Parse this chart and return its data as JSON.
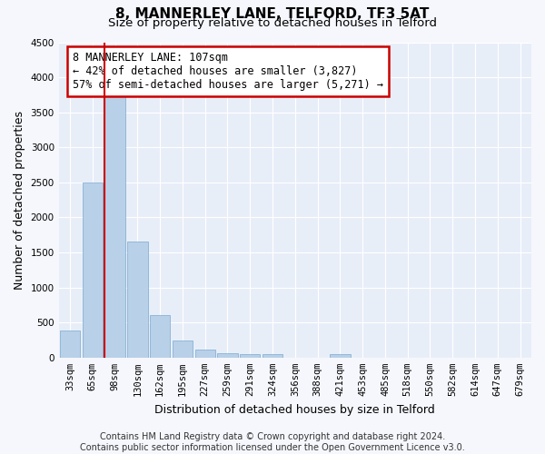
{
  "title": "8, MANNERLEY LANE, TELFORD, TF3 5AT",
  "subtitle": "Size of property relative to detached houses in Telford",
  "xlabel": "Distribution of detached houses by size in Telford",
  "ylabel": "Number of detached properties",
  "categories": [
    "33sqm",
    "65sqm",
    "98sqm",
    "130sqm",
    "162sqm",
    "195sqm",
    "227sqm",
    "259sqm",
    "291sqm",
    "324sqm",
    "356sqm",
    "388sqm",
    "421sqm",
    "453sqm",
    "485sqm",
    "518sqm",
    "550sqm",
    "582sqm",
    "614sqm",
    "647sqm",
    "679sqm"
  ],
  "values": [
    380,
    2500,
    3750,
    1650,
    600,
    240,
    110,
    60,
    55,
    50,
    0,
    0,
    55,
    0,
    0,
    0,
    0,
    0,
    0,
    0,
    0
  ],
  "bar_color": "#b8d0e8",
  "bar_edge_color": "#7aaad0",
  "vline_x_index": 2,
  "vline_color": "#cc0000",
  "annotation_text": "8 MANNERLEY LANE: 107sqm\n← 42% of detached houses are smaller (3,827)\n57% of semi-detached houses are larger (5,271) →",
  "annotation_box_color": "#ffffff",
  "annotation_box_edge_color": "#cc0000",
  "ylim": [
    0,
    4500
  ],
  "yticks": [
    0,
    500,
    1000,
    1500,
    2000,
    2500,
    3000,
    3500,
    4000,
    4500
  ],
  "footer_text": "Contains HM Land Registry data © Crown copyright and database right 2024.\nContains public sector information licensed under the Open Government Licence v3.0.",
  "bg_color": "#f5f7fc",
  "plot_bg_color": "#e8eef8",
  "grid_color": "#ffffff",
  "title_fontsize": 11,
  "subtitle_fontsize": 9.5,
  "axis_label_fontsize": 9,
  "tick_fontsize": 7.5,
  "annotation_fontsize": 8.5,
  "footer_fontsize": 7
}
